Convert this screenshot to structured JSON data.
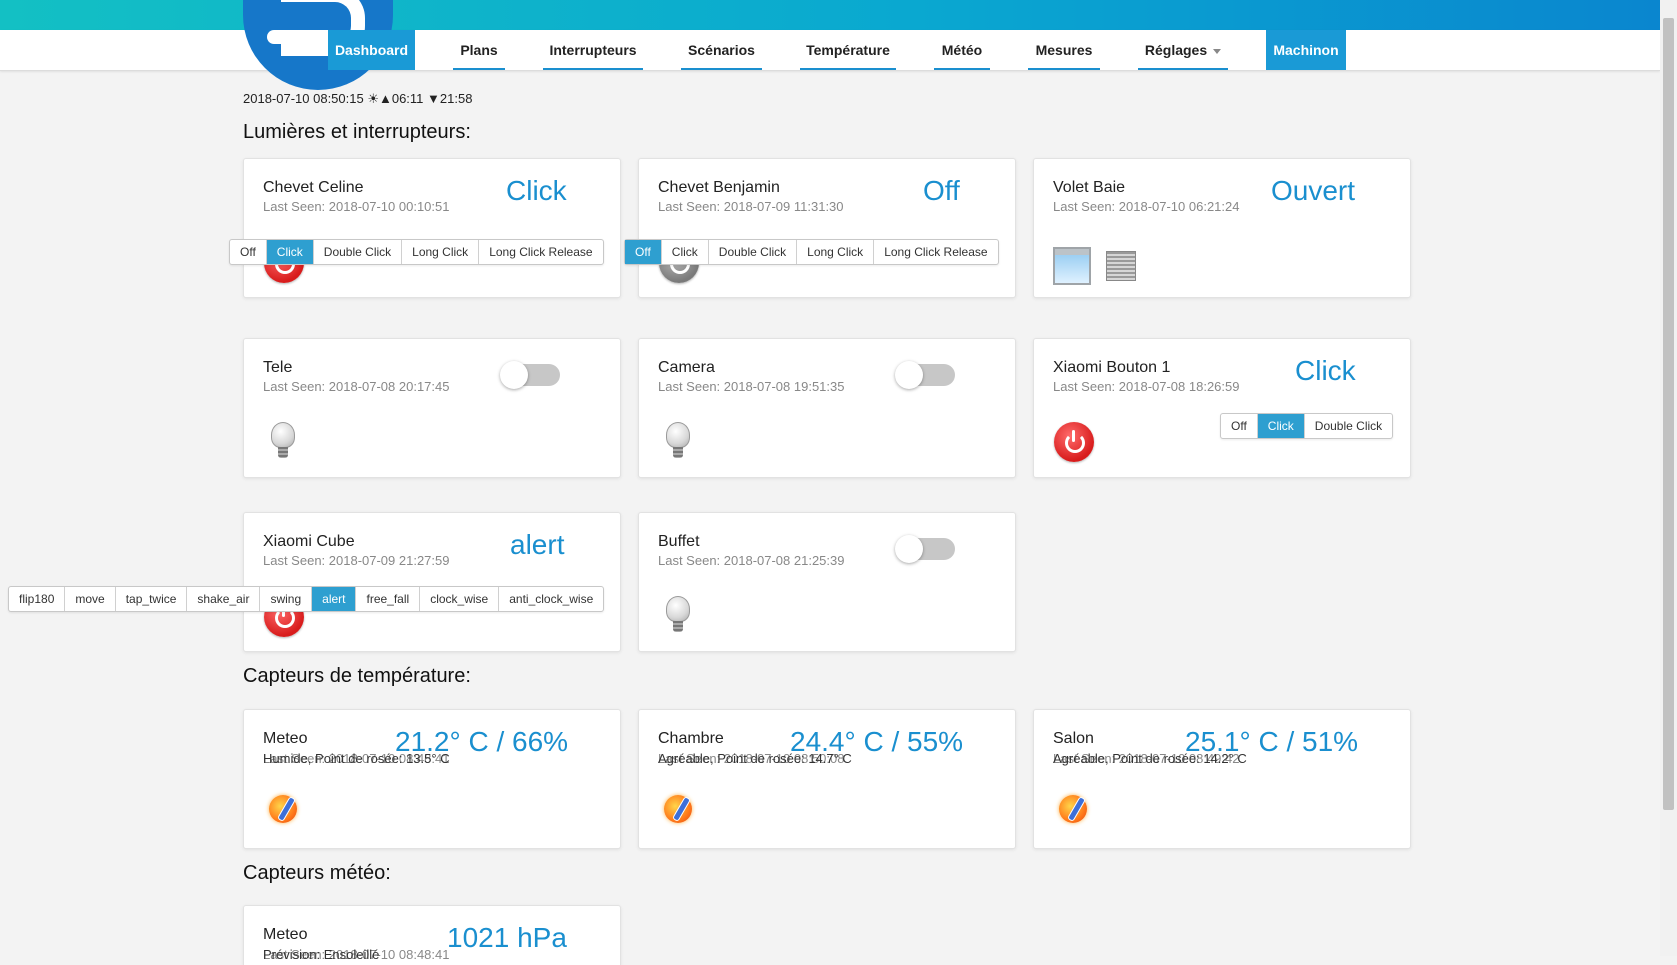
{
  "nav": {
    "items": [
      {
        "label": "Dashboard",
        "active": true
      },
      {
        "label": "Plans"
      },
      {
        "label": "Interrupteurs"
      },
      {
        "label": "Scénarios"
      },
      {
        "label": "Température"
      },
      {
        "label": "Météo"
      },
      {
        "label": "Mesures"
      },
      {
        "label": "Réglages"
      },
      {
        "label": "Machinon",
        "active": true
      }
    ]
  },
  "clock": "2018-07-10 08:50:15 ☀▲06:11 ▼21:58",
  "sections": {
    "lights": "Lumières et interrupteurs:",
    "temp": "Capteurs de température:",
    "weather": "Capteurs météo:"
  },
  "devices": [
    {
      "name": "Chevet Celine",
      "seen": "Last Seen: 2018-07-10 00:10:51",
      "status": "Click",
      "options": [
        "Off",
        "Click",
        "Double Click",
        "Long Click",
        "Long Click Release"
      ],
      "selected": 1
    },
    {
      "name": "Chevet Benjamin",
      "seen": "Last Seen: 2018-07-09 11:31:30",
      "status": "Off",
      "options": [
        "Off",
        "Click",
        "Double Click",
        "Long Click",
        "Long Click Release"
      ],
      "selected": 0
    },
    {
      "name": "Volet Baie",
      "seen": "Last Seen: 2018-07-10 06:21:24",
      "status": "Ouvert"
    },
    {
      "name": "Tele",
      "seen": "Last Seen: 2018-07-08 20:17:45",
      "on": false
    },
    {
      "name": "Camera",
      "seen": "Last Seen: 2018-07-08 19:51:35",
      "on": false
    },
    {
      "name": "Xiaomi Bouton 1",
      "seen": "Last Seen: 2018-07-08 18:26:59",
      "status": "Click",
      "options": [
        "Off",
        "Click",
        "Double Click"
      ],
      "selected": 1
    },
    {
      "name": "Xiaomi Cube",
      "seen": "Last Seen: 2018-07-09 21:27:59",
      "status": "alert",
      "options": [
        "flip180",
        "move",
        "tap_twice",
        "shake_air",
        "swing",
        "alert",
        "free_fall",
        "clock_wise",
        "anti_clock_wise"
      ],
      "selected": 5
    },
    {
      "name": "Buffet",
      "seen": "Last Seen: 2018-07-08 21:25:39",
      "on": false
    }
  ],
  "temps": [
    {
      "name": "Meteo",
      "value": "21.2° C / 66%",
      "seen": "Last Seen: 2018-07-10 08:48:41",
      "detail": "Humide, Point de rosée: 13.5° C"
    },
    {
      "name": "Chambre",
      "value": "24.4° C / 55%",
      "seen": "Last Seen: 2018-07-10 08:50:08",
      "detail": "Agréable, Point de rosée: 14.7° C"
    },
    {
      "name": "Salon",
      "value": "25.1° C / 51%",
      "seen": "Last Seen: 2018-07-10 08:49:42",
      "detail": "Agréable, Point de rosée: 14.2° C"
    }
  ],
  "weather": {
    "name": "Meteo",
    "value": "1021 hPa",
    "seen": "Last Seen: 2018-07-10 08:48:41",
    "detail": "Prévision: Ensoleillé"
  }
}
